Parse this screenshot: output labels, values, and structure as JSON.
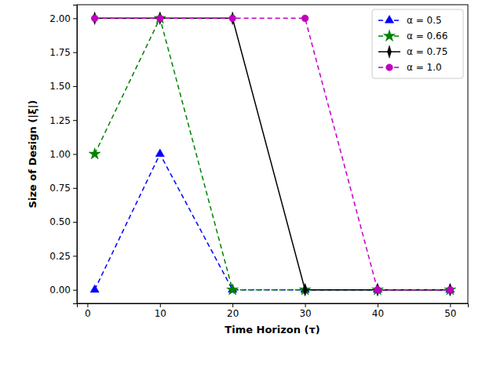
{
  "chart_data": {
    "type": "line",
    "x_label": "Time Horizon (τ)",
    "y_label": "Size of Design (|ξ|)",
    "x": [
      1,
      10,
      20,
      30,
      40,
      50
    ],
    "series": [
      {
        "name": "α = 0.5",
        "color": "#0000ff",
        "marker": "triangle",
        "line_style": "dashed",
        "values": [
          0,
          1,
          0,
          0,
          0,
          0
        ]
      },
      {
        "name": "α = 0.66",
        "color": "#008000",
        "marker": "star",
        "line_style": "dashed",
        "values": [
          1,
          2,
          0,
          0,
          0,
          0
        ]
      },
      {
        "name": "α = 0.75",
        "color": "#000000",
        "marker": "diamond",
        "line_style": "solid",
        "values": [
          2,
          2,
          2,
          0,
          0,
          0
        ]
      },
      {
        "name": "α = 1.0",
        "color": "#bf00bf",
        "marker": "circle",
        "line_style": "dashed",
        "values": [
          2,
          2,
          2,
          2,
          0,
          0
        ]
      }
    ],
    "xlim": [
      -1.45,
      52.45
    ],
    "ylim": [
      -0.1,
      2.1
    ],
    "xticks": [
      0,
      10,
      20,
      30,
      40,
      50
    ],
    "yticks": [
      {
        "value": 0,
        "label": "0.00"
      },
      {
        "value": 0.25,
        "label": "0.25"
      },
      {
        "value": 0.5,
        "label": "0.50"
      },
      {
        "value": 0.75,
        "label": "0.75"
      },
      {
        "value": 1,
        "label": "1.00"
      },
      {
        "value": 1.25,
        "label": "1.25"
      },
      {
        "value": 1.5,
        "label": "1.50"
      },
      {
        "value": 1.75,
        "label": "1.75"
      },
      {
        "value": 2,
        "label": "2.00"
      }
    ],
    "grid": false,
    "legend": "upper right"
  }
}
